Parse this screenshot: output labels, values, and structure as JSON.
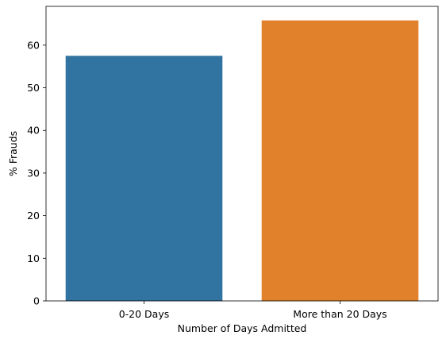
{
  "chart_data": {
    "type": "bar",
    "categories": [
      "0-20 Days",
      "More than 20 Days"
    ],
    "values": [
      57.5,
      65.8
    ],
    "colors": [
      "#3274a1",
      "#e1812c"
    ],
    "xlabel": "Number of Days Admitted",
    "ylabel": "% Frauds",
    "ylim": [
      0,
      69.1
    ],
    "yticks": [
      0,
      10,
      20,
      30,
      40,
      50,
      60
    ],
    "grid": false,
    "legend": "none"
  }
}
